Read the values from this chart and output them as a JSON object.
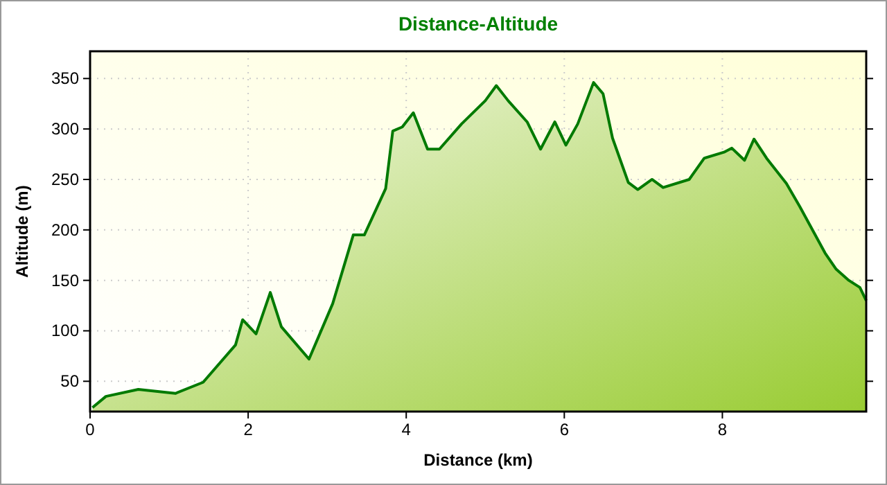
{
  "chart_data": {
    "type": "area",
    "title": "Distance-Altitude",
    "xlabel": "Distance (km)",
    "ylabel": "Altitude (m)",
    "xlim": [
      0,
      9.82
    ],
    "xticks": [
      0,
      2,
      4,
      6,
      8
    ],
    "ylim": [
      20,
      377
    ],
    "yticks": [
      50,
      100,
      150,
      200,
      250,
      300,
      350
    ],
    "grid": true,
    "line_style": "solid",
    "series": [
      {
        "color": "#007a00",
        "x": [
          0.03,
          0.2,
          0.61,
          1.08,
          1.43,
          1.84,
          1.93,
          2.1,
          2.28,
          2.42,
          2.77,
          3.07,
          3.33,
          3.47,
          3.74,
          3.83,
          3.95,
          4.09,
          4.27,
          4.42,
          4.7,
          5.0,
          5.14,
          5.29,
          5.53,
          5.7,
          5.88,
          6.02,
          6.17,
          6.37,
          6.49,
          6.61,
          6.81,
          6.93,
          7.11,
          7.25,
          7.58,
          7.77,
          8.02,
          8.12,
          8.28,
          8.4,
          8.56,
          8.81,
          8.98,
          9.3,
          9.44,
          9.6,
          9.74,
          9.82
        ],
        "values": [
          24,
          35,
          42,
          38,
          49,
          86,
          111,
          97,
          138,
          104,
          72,
          127,
          195,
          195,
          241,
          298,
          302,
          316,
          280,
          280,
          305,
          328,
          343,
          328,
          307,
          280,
          307,
          284,
          305,
          346,
          335,
          291,
          247,
          240,
          250,
          242,
          250,
          271,
          277,
          281,
          269,
          290,
          271,
          246,
          223,
          177,
          161,
          150,
          143,
          130
        ]
      }
    ]
  }
}
